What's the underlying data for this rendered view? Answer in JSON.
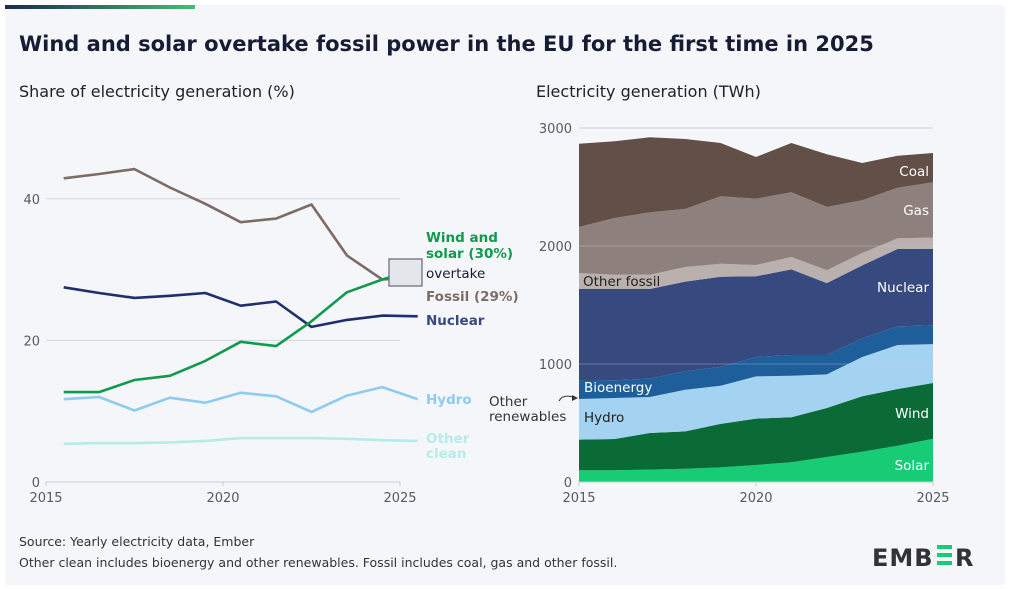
{
  "title": "Wind and solar overtake fossil power in the EU for the first time in 2025",
  "source": "Source: Yearly electricity data, Ember",
  "note": "Other clean includes bioenergy and other renewables. Fossil includes coal, gas and other fossil.",
  "logo": "EMBER",
  "chart_data": [
    {
      "type": "line",
      "title": "Share of electricity generation (%)",
      "x": [
        2015,
        2016,
        2017,
        2018,
        2019,
        2020,
        2021,
        2022,
        2023,
        2024,
        2025
      ],
      "xticks": [
        "2015",
        "2020",
        "2025"
      ],
      "yticks": [
        "0",
        "20",
        "40"
      ],
      "ylim": [
        0,
        45
      ],
      "grid": true,
      "series": [
        {
          "name": "Fossil (29%)",
          "color": "#7d6b66",
          "values": [
            42.9,
            43.5,
            44.2,
            41.6,
            39.3,
            36.7,
            37.2,
            39.2,
            32.0,
            28.6,
            28.9
          ]
        },
        {
          "name": "Nuclear",
          "color": "#1f2f6b",
          "values": [
            27.5,
            26.7,
            26.0,
            26.3,
            26.7,
            24.9,
            25.5,
            21.9,
            22.9,
            23.5,
            23.4
          ]
        },
        {
          "name": "Wind and solar (30%)",
          "color": "#0f9a4e",
          "values": [
            12.7,
            12.7,
            14.4,
            15.0,
            17.1,
            19.8,
            19.2,
            22.7,
            26.8,
            28.6,
            30.1
          ]
        },
        {
          "name": "Hydro",
          "color": "#8ecbee",
          "values": [
            11.7,
            12.0,
            10.1,
            11.9,
            11.2,
            12.6,
            12.1,
            9.9,
            12.2,
            13.4,
            11.7
          ]
        },
        {
          "name": "Other clean",
          "color": "#b6ece8",
          "values": [
            5.4,
            5.5,
            5.5,
            5.6,
            5.8,
            6.2,
            6.2,
            6.2,
            6.1,
            5.9,
            5.8
          ]
        }
      ],
      "annotation": "overtake",
      "label_lines": {
        "wind_solar": [
          "Wind and",
          "solar (30%)"
        ],
        "other_clean": [
          "Other",
          "clean"
        ]
      }
    },
    {
      "type": "area",
      "stacked": true,
      "title": "Electricity generation (TWh)",
      "x": [
        2015,
        2016,
        2017,
        2018,
        2019,
        2020,
        2021,
        2022,
        2023,
        2024,
        2025
      ],
      "xticks": [
        "2015",
        "2020",
        "2025"
      ],
      "yticks": [
        "0",
        "1000",
        "2000",
        "3000"
      ],
      "ylim": [
        0,
        3000
      ],
      "grid": true,
      "series": [
        {
          "name": "Solar",
          "color": "#17cc74",
          "values": [
            99,
            99,
            105,
            113,
            124,
            144,
            167,
            212,
            257,
            308,
            367
          ]
        },
        {
          "name": "Wind",
          "color": "#0b6b37",
          "values": [
            260,
            265,
            310,
            316,
            368,
            393,
            381,
            415,
            469,
            480,
            472
          ]
        },
        {
          "name": "Hydro",
          "color": "#a3d3f0",
          "values": [
            344,
            348,
            305,
            353,
            324,
            358,
            353,
            285,
            333,
            373,
            330
          ]
        },
        {
          "name": "Bioenergy",
          "color": "#1d5e9b",
          "values": [
            156,
            150,
            156,
            156,
            159,
            164,
            175,
            164,
            159,
            158,
            159
          ]
        },
        {
          "name": "Nuclear",
          "color": "#364a7f",
          "values": [
            777,
            774,
            760,
            760,
            765,
            684,
            726,
            610,
            618,
            656,
            649
          ]
        },
        {
          "name": "Other fossil",
          "color": "#bab0ad",
          "values": [
            135,
            121,
            121,
            124,
            110,
            96,
            105,
            108,
            105,
            90,
            94
          ]
        },
        {
          "name": "Gas",
          "color": "#8e817d",
          "values": [
            390,
            480,
            528,
            492,
            571,
            562,
            548,
            537,
            446,
            429,
            469
          ]
        },
        {
          "name": "Coal",
          "color": "#614f48",
          "values": [
            706,
            650,
            636,
            593,
            452,
            353,
            418,
            446,
            316,
            271,
            248
          ]
        }
      ],
      "annotation_lines": [
        "Other",
        "renewables"
      ]
    }
  ]
}
